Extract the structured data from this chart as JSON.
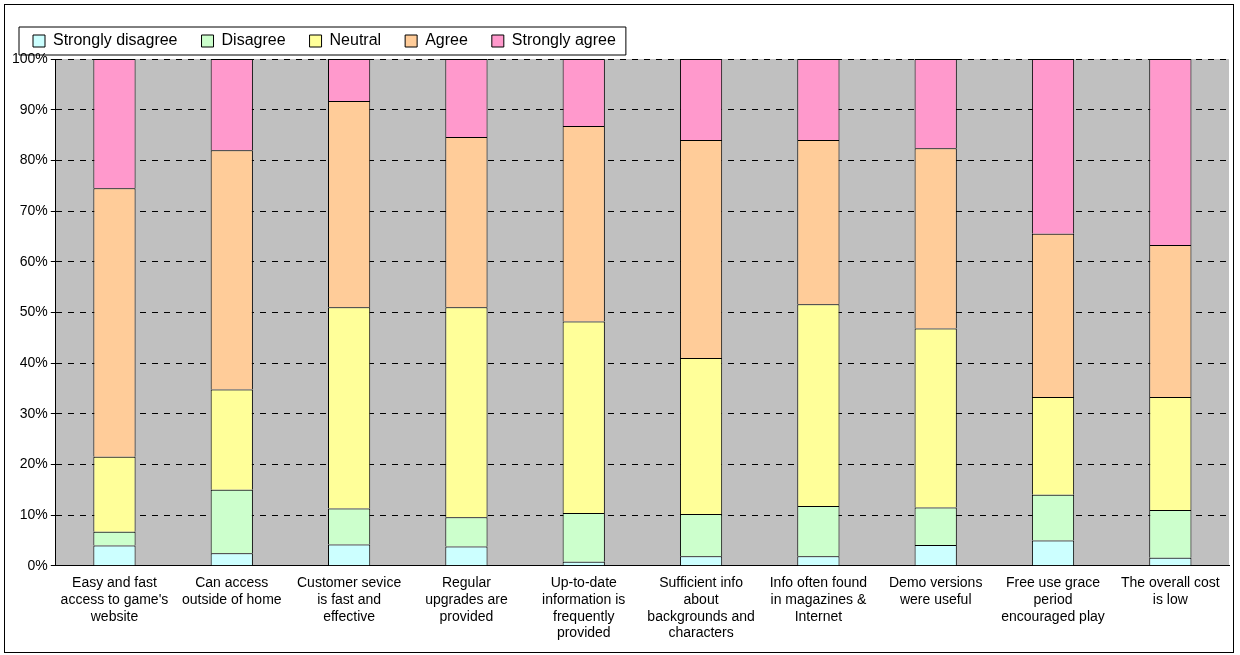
{
  "chart_data": {
    "type": "bar",
    "stacked": true,
    "categories": [
      "Easy and fast access to game's website",
      "Can access outside of home",
      "Customer sevice is fast and effective",
      "Regular upgrades are provided",
      "Up-to-date information is frequently provided",
      "Sufficient info about backgrounds and characters",
      "Info often found in magazines & Internet",
      "Demo versions were useful",
      "Free use grace period encouraged play",
      "The overall cost is low"
    ],
    "series": [
      {
        "name": "Strongly disagree",
        "color": "#ccffff",
        "values": [
          4,
          2.5,
          4.2,
          3.8,
          0.8,
          1.9,
          1.9,
          4.1,
          5,
          1.6
        ]
      },
      {
        "name": "Disagree",
        "color": "#ccffcc",
        "values": [
          2.7,
          12.5,
          7.1,
          5.8,
          9.6,
          8.3,
          9.9,
          7.4,
          9,
          9.4
        ]
      },
      {
        "name": "Neutral",
        "color": "#ffff99",
        "values": [
          14.8,
          19.8,
          39.7,
          41.4,
          37.8,
          30.8,
          39.8,
          35.3,
          19.3,
          22.3
        ]
      },
      {
        "name": "Agree",
        "color": "#ffcc99",
        "values": [
          53,
          47.2,
          40.7,
          33.6,
          38.6,
          43,
          32.4,
          35.6,
          32.2,
          30
        ]
      },
      {
        "name": "Strongly agree",
        "color": "#ff99cc",
        "values": [
          25.5,
          18,
          8.3,
          15.4,
          13.2,
          16,
          16,
          17.6,
          34.5,
          36.7
        ]
      }
    ],
    "ylim": [
      0,
      100
    ],
    "yticks": [
      {
        "value": 0,
        "label": "0%"
      },
      {
        "value": 10,
        "label": "10%"
      },
      {
        "value": 20,
        "label": "20%"
      },
      {
        "value": 30,
        "label": "30%"
      },
      {
        "value": 40,
        "label": "40%"
      },
      {
        "value": 50,
        "label": "50%"
      },
      {
        "value": 60,
        "label": "60%"
      },
      {
        "value": 70,
        "label": "70%"
      },
      {
        "value": 80,
        "label": "80%"
      },
      {
        "value": 90,
        "label": "90%"
      },
      {
        "value": 100,
        "label": "100%"
      }
    ],
    "grid": "y",
    "legend": "top left"
  }
}
